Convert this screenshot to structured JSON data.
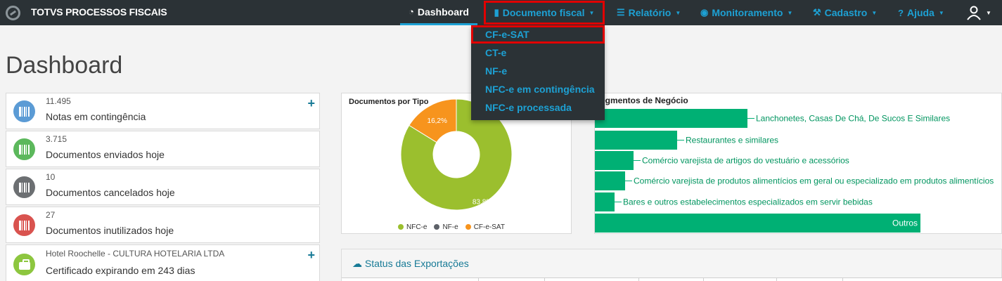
{
  "app": {
    "title": "TOTVS PROCESSOS FISCAIS"
  },
  "nav": {
    "dashboard": "Dashboard",
    "documento_fiscal": "Documento fiscal",
    "relatorio": "Relatório",
    "monitoramento": "Monitoramento",
    "cadastro": "Cadastro",
    "ajuda": "Ajuda"
  },
  "dropdown": {
    "items": [
      "CF-e-SAT",
      "CT-e",
      "NF-e",
      "NFC-e em contingência",
      "NFC-e processada"
    ]
  },
  "page": {
    "title": "Dashboard"
  },
  "cards": [
    {
      "count": "11.495",
      "label": "Notas em contingência",
      "color": "#5b9bd5",
      "icon": "barcode-icon",
      "plus": true
    },
    {
      "count": "3.715",
      "label": "Documentos enviados hoje",
      "color": "#5cb85c",
      "icon": "barcode-icon",
      "plus": false
    },
    {
      "count": "10",
      "label": "Documentos cancelados hoje",
      "color": "#6c6f72",
      "icon": "barcode-icon",
      "plus": false
    },
    {
      "count": "27",
      "label": "Documentos inutilizados hoje",
      "color": "#d9534f",
      "icon": "barcode-icon",
      "plus": false
    },
    {
      "count": "Hotel Roochelle - CULTURA HOTELARIA LTDA",
      "label": "Certificado expirando em 243 dias",
      "color": "#8dc63f",
      "icon": "briefcase-icon",
      "plus": true
    }
  ],
  "plus_symbol": "+",
  "chart_data": [
    {
      "type": "pie",
      "title": "Documentos por Tipo",
      "categories": [
        "NFC-e",
        "NF-e",
        "CF-e-SAT"
      ],
      "values": [
        83.8,
        0,
        16.2
      ],
      "value_labels": [
        "83,8%",
        "",
        "16,2%"
      ],
      "colors": [
        "#9bbf2e",
        "#5d6168",
        "#f7941d"
      ],
      "legend": "bottom"
    },
    {
      "type": "bar",
      "title": "Segmentos de Negócio",
      "orientation": "horizontal",
      "categories": [
        "Lanchonetes, Casas De Chá, De Sucos E Similares",
        "Restaurantes e similares",
        "Comércio varejista de artigos do vestuário e acessórios",
        "Comércio varejista de produtos alimentícios em geral ou especializado em produtos alimentícios",
        "Bares e outros estabelecimentos especializados em servir bebidas",
        "Outros"
      ],
      "values": [
        217,
        117,
        55,
        43,
        28,
        463
      ],
      "color": "#00b074"
    }
  ],
  "status": {
    "title": "Status das Exportações"
  }
}
